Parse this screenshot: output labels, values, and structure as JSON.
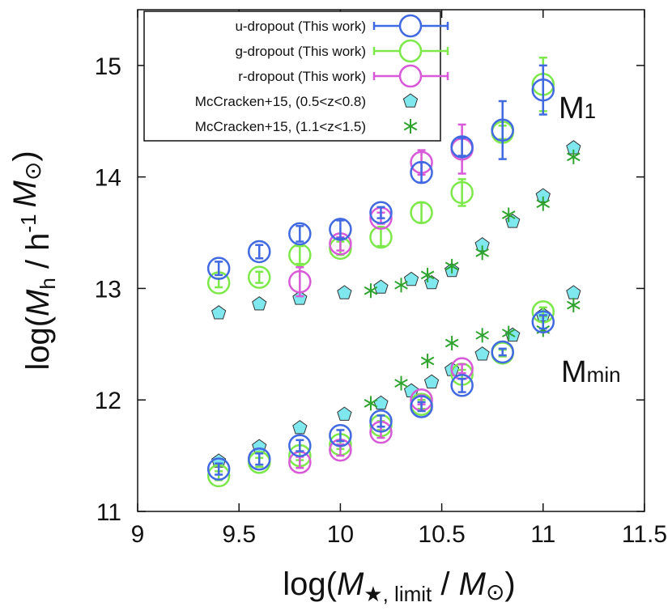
{
  "chart_data": {
    "type": "scatter",
    "title": "",
    "xlabel": {
      "main": "log(",
      "italic_m": "M",
      "sub": "★, limit",
      "tail": " / ",
      "italic_m2": "M",
      "sun": "⊙",
      "close": ")"
    },
    "ylabel": {
      "main": "log(",
      "italic_m": "M",
      "sub": "h",
      "mid": " / h",
      "sup": "-1",
      "italic_m2": "M",
      "sun": "⊙",
      "close": ")"
    },
    "xlim": [
      9,
      11.5
    ],
    "ylim": [
      11,
      15.5
    ],
    "x_ticks": [
      "9",
      "9.5",
      "10",
      "10.5",
      "11",
      "11.5"
    ],
    "x_tick_values": [
      9,
      9.5,
      10,
      10.5,
      11,
      11.5
    ],
    "y_ticks": [
      "11",
      "12",
      "13",
      "14",
      "15"
    ],
    "y_tick_values": [
      11,
      12,
      13,
      14,
      15
    ],
    "annotations": {
      "m1": {
        "base": "M",
        "sub": "1"
      },
      "mmin": {
        "base": "M",
        "sub": "min"
      }
    },
    "legend_position": "top-left",
    "colors": {
      "u": "#4169e1",
      "g": "#7de84a",
      "r": "#d85ad8",
      "mc05_fill": "#7fe8ee",
      "mc05_edge": "#333333",
      "mc11": "#2ea32e"
    },
    "series": [
      {
        "name": "u-dropout (This work)",
        "key": "u",
        "marker": "circle-errorbar",
        "M1": [
          {
            "x": 9.4,
            "y": 13.18,
            "err": 0.06
          },
          {
            "x": 9.6,
            "y": 13.33,
            "err": 0.06
          },
          {
            "x": 9.8,
            "y": 13.49,
            "err": 0.07
          },
          {
            "x": 10.0,
            "y": 13.53,
            "err": 0.08
          },
          {
            "x": 10.2,
            "y": 13.68,
            "err": 0.05
          },
          {
            "x": 10.4,
            "y": 14.04,
            "err": 0.09
          },
          {
            "x": 10.6,
            "y": 14.27,
            "err": 0.08
          },
          {
            "x": 10.8,
            "y": 14.42,
            "err": 0.26
          },
          {
            "x": 11.0,
            "y": 14.78,
            "err": 0.22
          }
        ],
        "Mmin": [
          {
            "x": 9.4,
            "y": 11.38,
            "err": 0.05
          },
          {
            "x": 9.6,
            "y": 11.47,
            "err": 0.05
          },
          {
            "x": 9.8,
            "y": 11.59,
            "err": 0.05
          },
          {
            "x": 10.0,
            "y": 11.68,
            "err": 0.05
          },
          {
            "x": 10.2,
            "y": 11.81,
            "err": 0.05
          },
          {
            "x": 10.4,
            "y": 11.94,
            "err": 0.04
          },
          {
            "x": 10.6,
            "y": 12.13,
            "err": 0.06
          },
          {
            "x": 10.8,
            "y": 12.43,
            "err": 0.03
          },
          {
            "x": 11.0,
            "y": 12.7,
            "err": 0.06
          }
        ]
      },
      {
        "name": "g-dropout (This work)",
        "key": "g",
        "marker": "circle-errorbar",
        "M1": [
          {
            "x": 9.4,
            "y": 13.05,
            "err": 0.04
          },
          {
            "x": 9.6,
            "y": 13.1,
            "err": 0.05
          },
          {
            "x": 9.8,
            "y": 13.3,
            "err": 0.08
          },
          {
            "x": 10.0,
            "y": 13.36,
            "err": 0.06
          },
          {
            "x": 10.2,
            "y": 13.46,
            "err": 0.08
          },
          {
            "x": 10.4,
            "y": 13.68,
            "err": 0.09
          },
          {
            "x": 10.6,
            "y": 13.86,
            "err": 0.12
          },
          {
            "x": 10.8,
            "y": 14.4,
            "err": 0.06
          },
          {
            "x": 11.0,
            "y": 14.83,
            "err": 0.24
          }
        ],
        "Mmin": [
          {
            "x": 9.4,
            "y": 11.32,
            "err": 0.04
          },
          {
            "x": 9.6,
            "y": 11.44,
            "err": 0.04
          },
          {
            "x": 9.8,
            "y": 11.5,
            "err": 0.04
          },
          {
            "x": 10.0,
            "y": 11.6,
            "err": 0.04
          },
          {
            "x": 10.2,
            "y": 11.77,
            "err": 0.04
          },
          {
            "x": 10.4,
            "y": 11.96,
            "err": 0.04
          },
          {
            "x": 10.6,
            "y": 12.23,
            "err": 0.04
          },
          {
            "x": 10.8,
            "y": 12.42,
            "err": 0.03
          },
          {
            "x": 11.0,
            "y": 12.79,
            "err": 0.04
          }
        ]
      },
      {
        "name": "r-dropout (This work)",
        "key": "r",
        "marker": "circle-errorbar",
        "M1": [
          {
            "x": 9.8,
            "y": 13.06,
            "err": 0.13
          },
          {
            "x": 10.0,
            "y": 13.4,
            "err": 0.06
          },
          {
            "x": 10.2,
            "y": 13.63,
            "err": 0.05
          },
          {
            "x": 10.4,
            "y": 14.13,
            "err": 0.11
          },
          {
            "x": 10.6,
            "y": 14.25,
            "err": 0.22
          }
        ],
        "Mmin": [
          {
            "x": 9.8,
            "y": 11.44,
            "err": 0.05
          },
          {
            "x": 10.0,
            "y": 11.55,
            "err": 0.05
          },
          {
            "x": 10.2,
            "y": 11.71,
            "err": 0.05
          },
          {
            "x": 10.4,
            "y": 12.0,
            "err": 0.04
          },
          {
            "x": 10.6,
            "y": 12.28,
            "err": 0.04
          }
        ]
      },
      {
        "name": "McCracken+15, (0.5<z<0.8)",
        "key": "mc05",
        "marker": "pentagon",
        "M1": [
          {
            "x": 9.4,
            "y": 12.78
          },
          {
            "x": 9.6,
            "y": 12.86
          },
          {
            "x": 9.8,
            "y": 12.91
          },
          {
            "x": 10.02,
            "y": 12.96
          },
          {
            "x": 10.2,
            "y": 13.01
          },
          {
            "x": 10.35,
            "y": 13.08
          },
          {
            "x": 10.45,
            "y": 13.05
          },
          {
            "x": 10.55,
            "y": 13.16
          },
          {
            "x": 10.7,
            "y": 13.39
          },
          {
            "x": 10.85,
            "y": 13.6
          },
          {
            "x": 11.0,
            "y": 13.83
          },
          {
            "x": 11.15,
            "y": 14.26
          }
        ],
        "Mmin": [
          {
            "x": 9.4,
            "y": 11.45
          },
          {
            "x": 9.6,
            "y": 11.58
          },
          {
            "x": 9.8,
            "y": 11.75
          },
          {
            "x": 10.02,
            "y": 11.87
          },
          {
            "x": 10.2,
            "y": 11.97
          },
          {
            "x": 10.35,
            "y": 12.08
          },
          {
            "x": 10.45,
            "y": 12.16
          },
          {
            "x": 10.55,
            "y": 12.27
          },
          {
            "x": 10.7,
            "y": 12.41
          },
          {
            "x": 10.85,
            "y": 12.58
          },
          {
            "x": 11.0,
            "y": 12.76
          },
          {
            "x": 11.15,
            "y": 12.96
          }
        ]
      },
      {
        "name": "McCracken+15, (1.1<z<1.5)",
        "key": "mc11",
        "marker": "asterisk",
        "M1": [
          {
            "x": 10.15,
            "y": 12.98
          },
          {
            "x": 10.3,
            "y": 13.03
          },
          {
            "x": 10.43,
            "y": 13.12
          },
          {
            "x": 10.55,
            "y": 13.2
          },
          {
            "x": 10.7,
            "y": 13.32
          },
          {
            "x": 10.83,
            "y": 13.66
          },
          {
            "x": 11.0,
            "y": 13.76
          },
          {
            "x": 11.15,
            "y": 14.18
          }
        ],
        "Mmin": [
          {
            "x": 10.15,
            "y": 11.97
          },
          {
            "x": 10.3,
            "y": 12.15
          },
          {
            "x": 10.43,
            "y": 12.35
          },
          {
            "x": 10.55,
            "y": 12.51
          },
          {
            "x": 10.7,
            "y": 12.58
          },
          {
            "x": 10.83,
            "y": 12.6
          },
          {
            "x": 11.0,
            "y": 12.63
          },
          {
            "x": 11.15,
            "y": 12.85
          }
        ]
      }
    ]
  }
}
